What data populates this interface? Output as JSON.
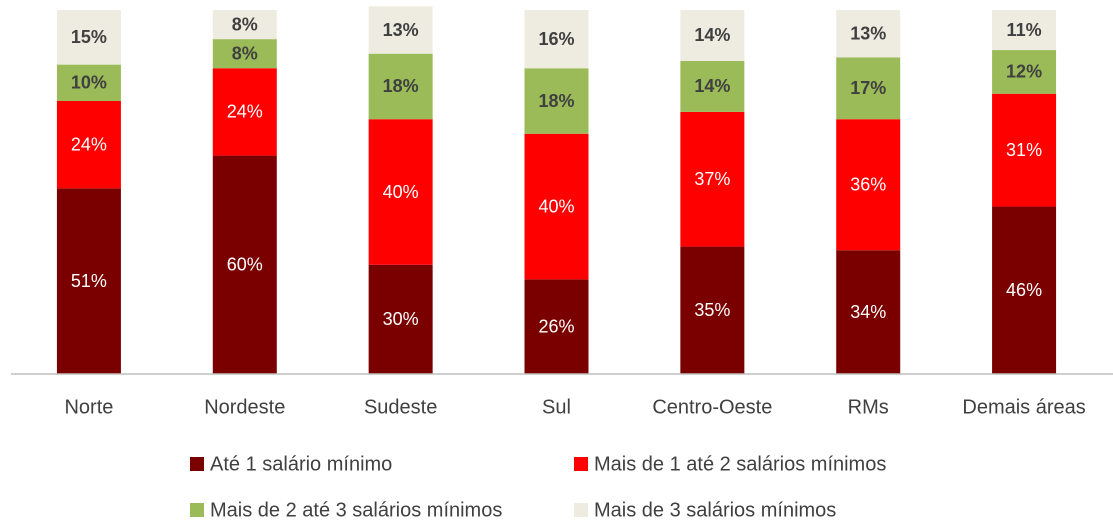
{
  "chart_data": {
    "type": "stacked_bar",
    "categories": [
      "Norte",
      "Nordeste",
      "Sudeste",
      "Sul",
      "Centro-Oeste",
      "RMs",
      "Demais áreas"
    ],
    "ylim": [
      0,
      100
    ],
    "series": [
      {
        "name": "Até 1 salário mínimo",
        "color": "#7a0000",
        "values": [
          51,
          60,
          30,
          26,
          35,
          34,
          46
        ],
        "value_labels": [
          "51%",
          "60%",
          "30%",
          "26%",
          "35%",
          "34%",
          "46%"
        ]
      },
      {
        "name": "Mais de 1 até 2 salários mínimos",
        "color": "#ff0000",
        "values": [
          24,
          24,
          40,
          40,
          37,
          36,
          31
        ],
        "value_labels": [
          "24%",
          "24%",
          "40%",
          "40%",
          "37%",
          "36%",
          "31%"
        ]
      },
      {
        "name": "Mais de 2 até 3 salários mínimos",
        "color": "#9bbb59",
        "values": [
          10,
          8,
          18,
          18,
          14,
          17,
          12
        ],
        "value_labels": [
          "10%",
          "8%",
          "18%",
          "18%",
          "14%",
          "17%",
          "12%"
        ]
      },
      {
        "name": "Mais de 3 salários mínimos",
        "color": "#eeece1",
        "values": [
          15,
          8,
          13,
          16,
          14,
          13,
          11
        ],
        "value_labels": [
          "15%",
          "8%",
          "13%",
          "16%",
          "14%",
          "13%",
          "11%"
        ]
      }
    ]
  }
}
